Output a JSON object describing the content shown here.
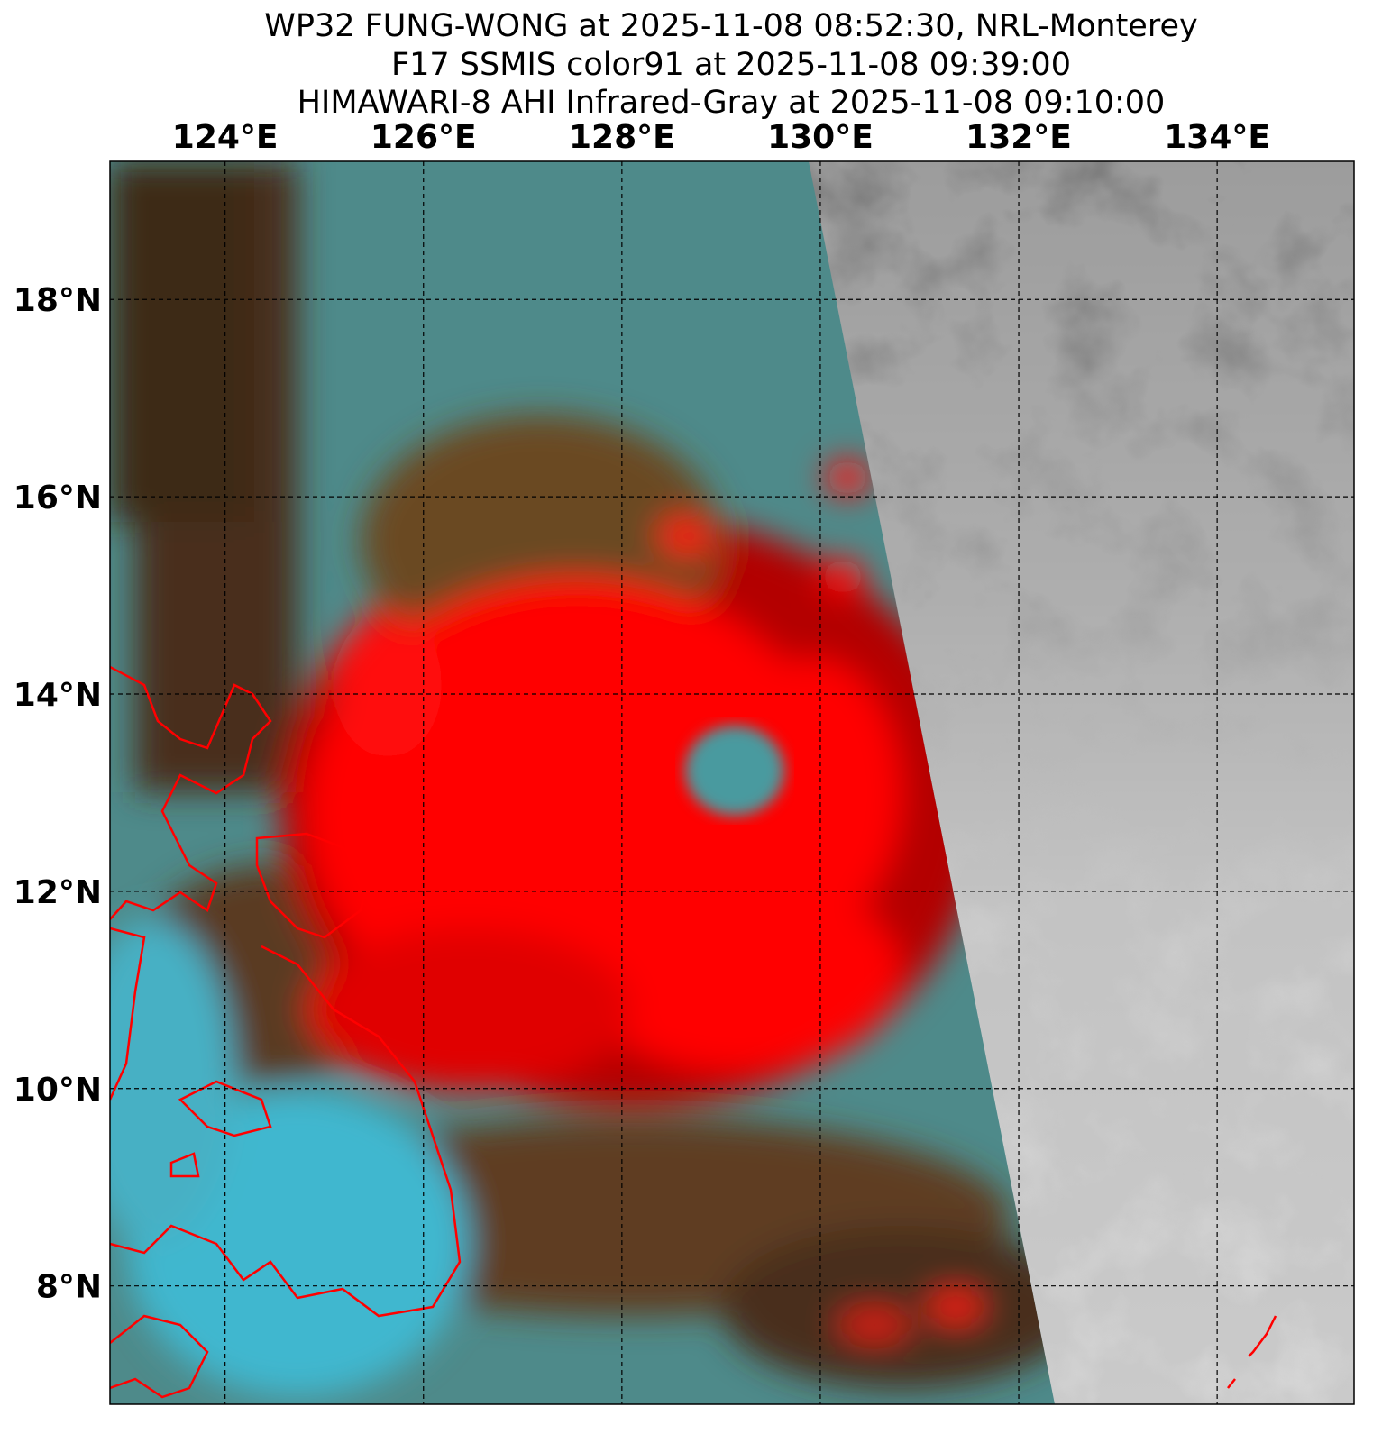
{
  "title": [
    "WP32 FUNG-WONG at 2025-11-08 08:52:30, NRL-Monterey",
    "F17 SSMIS color91 at 2025-11-08 09:39:00",
    "HIMAWARI-8 AHI Infrared-Gray at 2025-11-08 09:10:00"
  ],
  "map": {
    "xlim": [
      122.84,
      135.38
    ],
    "ylim": [
      6.8,
      19.4
    ],
    "xticks": [
      {
        "value": 124,
        "label": "124°E"
      },
      {
        "value": 126,
        "label": "126°E"
      },
      {
        "value": 128,
        "label": "128°E"
      },
      {
        "value": 130,
        "label": "130°E"
      },
      {
        "value": 132,
        "label": "132°E"
      },
      {
        "value": 134,
        "label": "134°E"
      }
    ],
    "yticks": [
      {
        "value": 8,
        "label": "8°N"
      },
      {
        "value": 10,
        "label": "10°N"
      },
      {
        "value": 12,
        "label": "12°N"
      },
      {
        "value": 14,
        "label": "14°N"
      },
      {
        "value": 16,
        "label": "16°N"
      },
      {
        "value": 18,
        "label": "18°N"
      }
    ],
    "grid": true
  }
}
